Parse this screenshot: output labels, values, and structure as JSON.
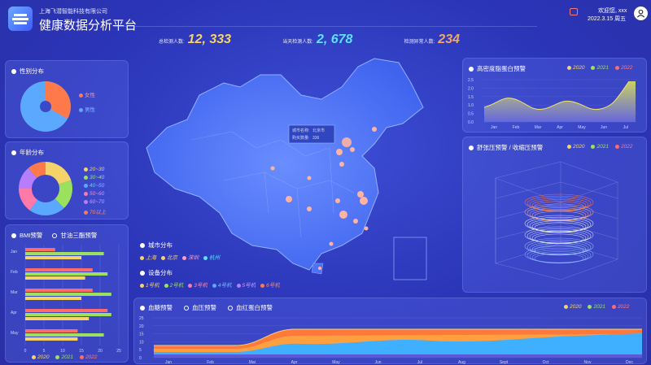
{
  "header": {
    "company": "上海飞潜智能科技有限公司",
    "title": "健康数据分析平台",
    "welcome": "欢迎您, xxx",
    "date": "2022.3.15 周五"
  },
  "stats": [
    {
      "label": "总检测人数:",
      "value": "12, 333",
      "color": "#f5d36a"
    },
    {
      "label": "当天检测人数:",
      "value": "2, 678",
      "color": "#5ee0ff"
    },
    {
      "label": "检测异常人数:",
      "value": "234",
      "color": "#f0a86a"
    }
  ],
  "gender": {
    "title": "性别分布",
    "legend": [
      {
        "label": "女性",
        "color": "#ff7a4a"
      },
      {
        "label": "男性",
        "color": "#5aa8ff"
      }
    ],
    "values": {
      "female": 35,
      "male": 65
    }
  },
  "age": {
    "title": "年龄分布",
    "legend": [
      {
        "label": "20~30",
        "color": "#f5d36a"
      },
      {
        "label": "30~40",
        "color": "#9be15d"
      },
      {
        "label": "40~50",
        "color": "#5aa8ff"
      },
      {
        "label": "50~60",
        "color": "#ff7aa8"
      },
      {
        "label": "60~70",
        "color": "#b77dff"
      },
      {
        "label": "70以上",
        "color": "#ff7a4a"
      }
    ],
    "values": [
      20,
      18,
      22,
      15,
      14,
      11
    ]
  },
  "bmi": {
    "tab1": "BMI预警",
    "tab2": "甘油三酯预警",
    "categories": [
      "Jan",
      "Feb",
      "Mar",
      "Apr",
      "May"
    ],
    "xticks": [
      "0",
      "5",
      "10",
      "15",
      "20",
      "25"
    ],
    "legend": [
      {
        "label": "2020",
        "color": "#f5d36a"
      },
      {
        "label": "2021",
        "color": "#9be15d"
      },
      {
        "label": "2022",
        "color": "#ff6a6a"
      }
    ]
  },
  "map": {
    "info_label1": "城市名称:",
    "info_value1": "北京市",
    "info_label2": "购买数量:",
    "info_value2": "336",
    "city_title": "城市分布",
    "cities": [
      {
        "label": "上海",
        "color": "#f5d36a"
      },
      {
        "label": "北京",
        "color": "#f5d36a"
      },
      {
        "label": "深圳",
        "color": "#ff9ec4"
      },
      {
        "label": "杭州",
        "color": "#5ee0ff"
      }
    ],
    "device_title": "设备分布",
    "devices": [
      {
        "label": "1号机",
        "color": "#f5d36a"
      },
      {
        "label": "2号机",
        "color": "#9be15d"
      },
      {
        "label": "3号机",
        "color": "#ff7aa8"
      },
      {
        "label": "4号机",
        "color": "#5aa8ff"
      },
      {
        "label": "5号机",
        "color": "#b77dff"
      },
      {
        "label": "6号机",
        "color": "#ff7a4a"
      }
    ]
  },
  "hdl": {
    "title": "高密度脂蛋白预警",
    "legend": [
      {
        "label": "2020",
        "color": "#f5d36a"
      },
      {
        "label": "2021",
        "color": "#9be15d"
      },
      {
        "label": "2022",
        "color": "#ff6a6a"
      }
    ],
    "months": [
      "Jan",
      "Feb",
      "Mar",
      "Apr",
      "May",
      "Jun",
      "Jul"
    ],
    "yticks": [
      "2.5",
      "2.0",
      "1.5",
      "1.0",
      "0.5",
      "0.0"
    ]
  },
  "bp": {
    "title": "舒张压预警 / 收缩压预警",
    "legend": [
      {
        "label": "2020",
        "color": "#f5d36a"
      },
      {
        "label": "2021",
        "color": "#9be15d"
      },
      {
        "label": "2022",
        "color": "#ff6a6a"
      }
    ]
  },
  "bottom": {
    "tab1": "血糖预警",
    "tab2": "血压预警",
    "tab3": "血红蛋白预警",
    "legend": [
      {
        "label": "2020",
        "color": "#f5d36a"
      },
      {
        "label": "2021",
        "color": "#9be15d"
      },
      {
        "label": "2022",
        "color": "#ff6a6a"
      }
    ],
    "months": [
      "Jan",
      "Feb",
      "Mar",
      "Apr",
      "May",
      "Jun",
      "Jul",
      "Aug",
      "Sept",
      "Oct",
      "Nov",
      "Dec"
    ],
    "yticks": [
      "25",
      "20",
      "15",
      "10",
      "5",
      "0"
    ]
  }
}
